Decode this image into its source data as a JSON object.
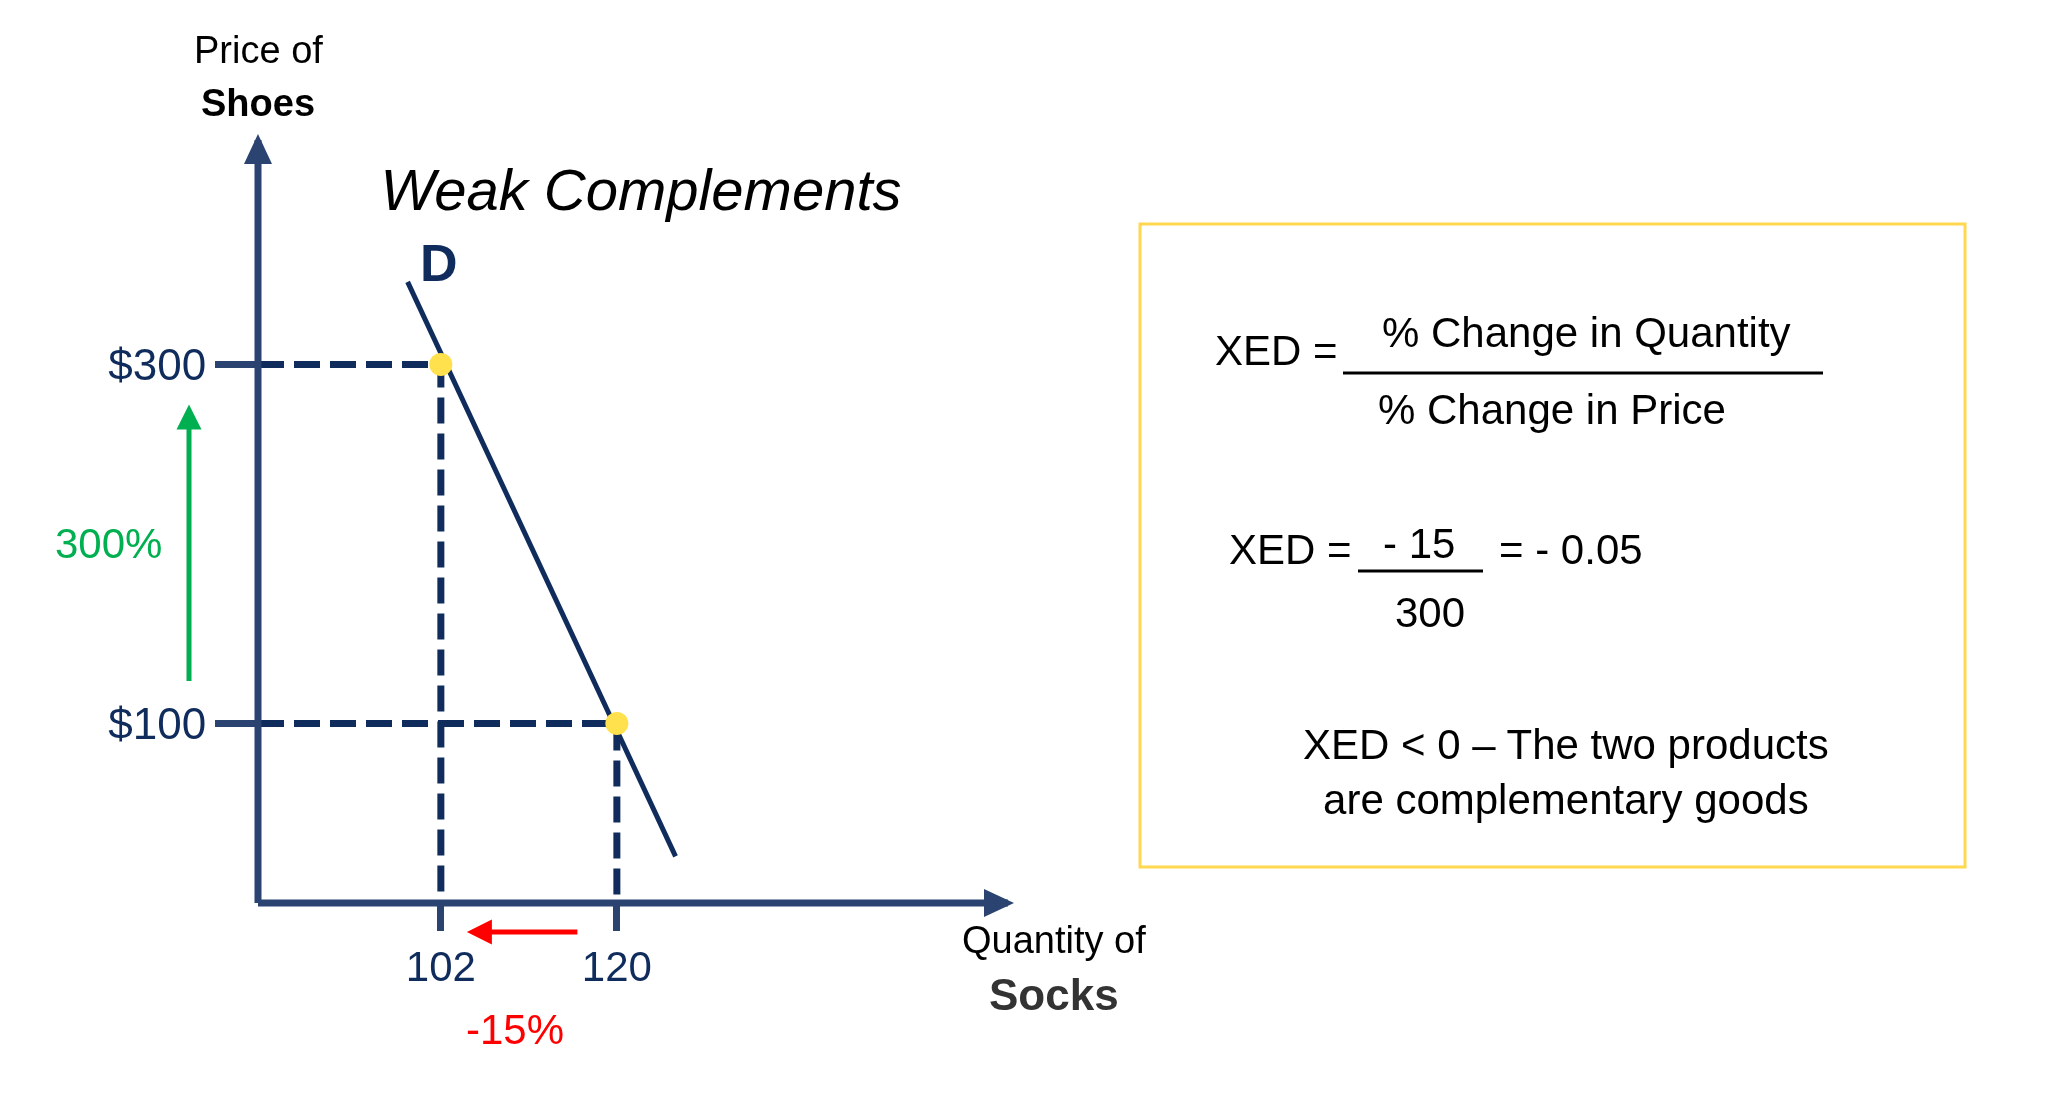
{
  "chart_data": [
    {
      "type": "line",
      "title": "Weak Complements",
      "xlabel": "Quantity of\nSocks",
      "ylabel": "Price of\nShoes",
      "xlim": [
        83.3,
        160
      ],
      "ylim": [
        0,
        425
      ],
      "xticks": [
        102,
        120
      ],
      "yticks": [
        {
          "value": 100,
          "label": "$100"
        },
        {
          "value": 300,
          "label": "$300"
        }
      ],
      "series": [
        {
          "name": "D",
          "type": "line",
          "color": "#0f2c5c",
          "x": [
            98.6,
            126
          ],
          "values": [
            346,
            26
          ]
        },
        {
          "type": "line",
          "line_style": "dashed",
          "color": "#0f2c5c",
          "x": [
            83.3,
            102,
            102
          ],
          "values": [
            300,
            300,
            0
          ]
        },
        {
          "type": "line",
          "line_style": "dashed",
          "color": "#0f2c5c",
          "x": [
            83.3,
            120,
            120
          ],
          "values": [
            100,
            100,
            0
          ]
        },
        {
          "type": "scatter",
          "marker": "circle",
          "color": "#ffe04d",
          "x": [
            102,
            120
          ],
          "values": [
            300,
            100
          ]
        }
      ],
      "annotations": [
        "300%",
        "-15%"
      ]
    },
    {
      "type": "other",
      "color": "#ffd84f",
      "annotations": [
        "XED =",
        "% Change in Quantity",
        "% Change in Price",
        "XED =",
        "- 15",
        "300",
        "= - 0.05",
        "XED < 0 – The two products are complementary goods"
      ]
    }
  ]
}
